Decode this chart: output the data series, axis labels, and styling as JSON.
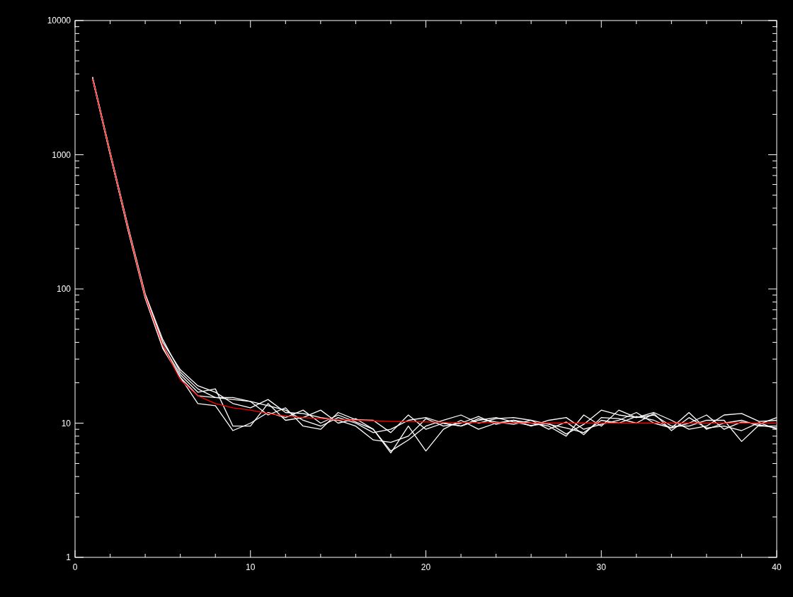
{
  "chart_data": {
    "type": "line",
    "x": [
      1,
      2,
      3,
      4,
      5,
      6,
      7,
      8,
      9,
      10,
      11,
      12,
      13,
      14,
      15,
      16,
      17,
      18,
      19,
      20,
      21,
      22,
      23,
      24,
      25,
      26,
      27,
      28,
      29,
      30,
      31,
      32,
      33,
      34,
      35,
      36,
      37,
      38,
      39,
      40
    ],
    "log": "y",
    "xlim": [
      0,
      40
    ],
    "ylim": [
      1,
      10000
    ],
    "xticks": [
      0,
      {
        "value": 2,
        "label": null
      },
      {
        "value": 4,
        "label": null
      },
      {
        "value": 6,
        "label": null
      },
      {
        "value": 8,
        "label": null
      },
      10,
      {
        "value": 12,
        "label": null
      },
      {
        "value": 14,
        "label": null
      },
      {
        "value": 16,
        "label": null
      },
      {
        "value": 18,
        "label": null
      },
      20,
      {
        "value": 22,
        "label": null
      },
      {
        "value": 24,
        "label": null
      },
      {
        "value": 26,
        "label": null
      },
      {
        "value": 28,
        "label": null
      },
      30,
      {
        "value": 32,
        "label": null
      },
      {
        "value": 34,
        "label": null
      },
      {
        "value": 36,
        "label": null
      },
      {
        "value": 38,
        "label": null
      },
      40
    ],
    "yticks": [
      1,
      {
        "value": 2,
        "label": null
      },
      {
        "value": 3,
        "label": null
      },
      {
        "value": 4,
        "label": null
      },
      {
        "value": 5,
        "label": null
      },
      {
        "value": 6,
        "label": null
      },
      {
        "value": 7,
        "label": null
      },
      {
        "value": 8,
        "label": null
      },
      {
        "value": 9,
        "label": null
      },
      10,
      {
        "value": 20,
        "label": null
      },
      {
        "value": 30,
        "label": null
      },
      {
        "value": 40,
        "label": null
      },
      {
        "value": 50,
        "label": null
      },
      {
        "value": 60,
        "label": null
      },
      {
        "value": 70,
        "label": null
      },
      {
        "value": 80,
        "label": null
      },
      {
        "value": 90,
        "label": null
      },
      100,
      {
        "value": 200,
        "label": null
      },
      {
        "value": 300,
        "label": null
      },
      {
        "value": 400,
        "label": null
      },
      {
        "value": 500,
        "label": null
      },
      {
        "value": 600,
        "label": null
      },
      {
        "value": 700,
        "label": null
      },
      {
        "value": 800,
        "label": null
      },
      {
        "value": 900,
        "label": null
      },
      1000,
      {
        "value": 2000,
        "label": null
      },
      {
        "value": 3000,
        "label": null
      },
      {
        "value": 4000,
        "label": null
      },
      {
        "value": 5000,
        "label": null
      },
      {
        "value": 6000,
        "label": null
      },
      {
        "value": 7000,
        "label": null
      },
      {
        "value": 8000,
        "label": null
      },
      {
        "value": 9000,
        "label": null
      },
      10000
    ],
    "series": [
      {
        "color": "#ffffff",
        "values": [
          3800,
          1050,
          300,
          92,
          42,
          24,
          18,
          15.5,
          15,
          14.5,
          13.5,
          12.5,
          10.5,
          9.5,
          11,
          10,
          8.5,
          9,
          10.5,
          11,
          10,
          9.5,
          10.5,
          11,
          10.2,
          9.6,
          10,
          8.3,
          9.8,
          12.5,
          11.5,
          11,
          12,
          10.5,
          9,
          9.5,
          11.5,
          11.8,
          10.3,
          10.5
        ]
      },
      {
        "color": "#ffffff",
        "values": [
          3700,
          1020,
          280,
          85,
          36,
          22,
          14,
          13.5,
          8.8,
          10,
          12,
          11,
          12.5,
          10,
          11.5,
          10.2,
          9,
          6.2,
          7.5,
          9.5,
          10.5,
          11.5,
          10,
          10.8,
          11,
          10.5,
          9.8,
          9.2,
          8.5,
          10.5,
          10,
          11.2,
          10.5,
          9.2,
          10,
          11.5,
          9,
          10.2,
          9.8,
          11
        ]
      },
      {
        "color": "#ffffff",
        "values": [
          3650,
          1000,
          290,
          90,
          40,
          25,
          19,
          17,
          14,
          13,
          15,
          12,
          11.8,
          11,
          10.5,
          9.5,
          7.5,
          7.2,
          8,
          10.8,
          9.5,
          10,
          11.2,
          9.8,
          10.5,
          10,
          9.5,
          8,
          11.5,
          9.5,
          12.5,
          11,
          11.5,
          9.5,
          9.5,
          10.5,
          10.5,
          7.3,
          9.7,
          9.2
        ]
      },
      {
        "color": "#ffffff",
        "values": [
          3750,
          1040,
          295,
          88,
          38,
          23,
          17,
          18,
          9.5,
          9.5,
          14,
          10.5,
          11,
          12.5,
          10,
          10.8,
          9,
          6,
          9.5,
          6.2,
          9,
          10.5,
          9,
          10,
          10.5,
          9.5,
          10.5,
          11,
          9,
          9.8,
          10.5,
          12,
          10,
          9.2,
          12,
          9,
          10,
          10.5,
          9.5,
          9.5
        ]
      },
      {
        "color": "#ffffff",
        "values": [
          3700,
          1010,
          285,
          87,
          37,
          22,
          16,
          15.5,
          15.5,
          14.5,
          11.5,
          13,
          9.5,
          9,
          12,
          10.6,
          10.5,
          8.5,
          11.5,
          9,
          10,
          9.5,
          10.8,
          10.2,
          9.8,
          10.5,
          9,
          10.2,
          8.2,
          11,
          10.8,
          10,
          11.8,
          8.8,
          11,
          9.2,
          9.5,
          8.8,
          10.1,
          9
        ]
      },
      {
        "color": "#ff0000",
        "values": [
          3700,
          1030,
          290,
          88,
          38,
          21,
          16,
          14,
          13,
          12.5,
          11.8,
          11.3,
          11,
          10.8,
          10.6,
          10.5,
          10.4,
          10.3,
          10.25,
          10.2,
          10.15,
          10.1,
          10.1,
          10.05,
          10.05,
          10,
          10,
          10,
          10,
          10,
          10,
          10,
          10,
          10,
          10,
          10,
          10,
          10,
          10,
          10
        ]
      }
    ]
  }
}
